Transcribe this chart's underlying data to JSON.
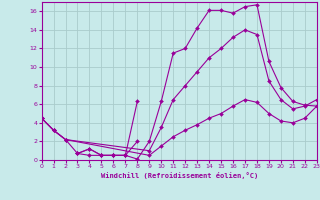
{
  "xlabel": "Windchill (Refroidissement éolien,°C)",
  "bg_color": "#c8eaea",
  "line_color": "#990099",
  "grid_color": "#aacccc",
  "xlim": [
    0,
    23
  ],
  "ylim": [
    0,
    17
  ],
  "xticks": [
    0,
    1,
    2,
    3,
    4,
    5,
    6,
    7,
    8,
    9,
    10,
    11,
    12,
    13,
    14,
    15,
    16,
    17,
    18,
    19,
    20,
    21,
    22,
    23
  ],
  "yticks": [
    0,
    2,
    4,
    6,
    8,
    10,
    12,
    14,
    16
  ],
  "line1_x": [
    0,
    1,
    2,
    3,
    4,
    5,
    6,
    7,
    8,
    9,
    10,
    11,
    12,
    13,
    14,
    15,
    16,
    17,
    18,
    19,
    20,
    21,
    22,
    23
  ],
  "line1_y": [
    4.5,
    3.2,
    2.2,
    0.7,
    1.2,
    0.5,
    0.5,
    0.5,
    0.1,
    2.0,
    6.3,
    11.5,
    12.0,
    14.2,
    16.1,
    16.1,
    15.8,
    16.5,
    16.7,
    10.6,
    7.8,
    6.3,
    5.9,
    5.8
  ],
  "line2_x": [
    0,
    1,
    2,
    9,
    10,
    11,
    12,
    13,
    14,
    15,
    16,
    17,
    18,
    19,
    20,
    21,
    22,
    23
  ],
  "line2_y": [
    4.5,
    3.2,
    2.2,
    1.0,
    3.5,
    6.5,
    8.0,
    9.5,
    11.0,
    12.0,
    13.2,
    14.0,
    13.5,
    8.5,
    6.5,
    5.5,
    5.8,
    6.5
  ],
  "line3_x": [
    0,
    1,
    2,
    9,
    10,
    11,
    12,
    13,
    14,
    15,
    16,
    17,
    18,
    19,
    20,
    21,
    22,
    23
  ],
  "line3_y": [
    4.5,
    3.2,
    2.2,
    0.5,
    1.5,
    2.5,
    3.2,
    3.8,
    4.5,
    5.0,
    5.8,
    6.5,
    6.2,
    5.0,
    4.2,
    4.0,
    4.5,
    5.8
  ],
  "line4_x": [
    3,
    4,
    5,
    6,
    7,
    8
  ],
  "line4_y": [
    0.7,
    1.2,
    0.5,
    0.5,
    0.5,
    6.3
  ],
  "line5_x": [
    3,
    4,
    5,
    6,
    7,
    8
  ],
  "line5_y": [
    0.7,
    0.5,
    0.5,
    0.5,
    0.5,
    2.0
  ],
  "markersize": 2.0,
  "linewidth": 0.8
}
